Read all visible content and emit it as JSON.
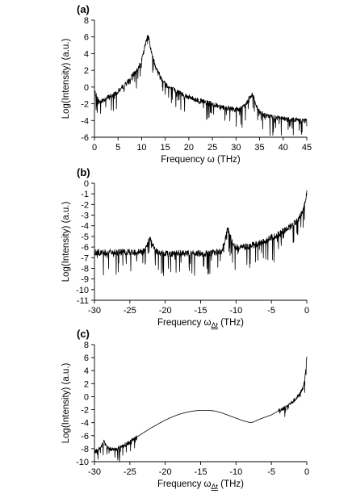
{
  "chart_data": [
    {
      "type": "line",
      "panel_label": "(a)",
      "title": "",
      "xlabel": "Frequency ω (THz)",
      "xlabel_sub": "",
      "xlabel_unit": "",
      "ylabel": "Log(Intensity) (a.u.)",
      "xlim": [
        0,
        45
      ],
      "ylim": [
        -6,
        8
      ],
      "xticks": [
        0,
        5,
        10,
        15,
        20,
        25,
        30,
        35,
        40,
        45
      ],
      "yticks": [
        -6,
        -4,
        -2,
        0,
        2,
        4,
        6,
        8
      ],
      "grid": false,
      "series": [
        {
          "noisy": true,
          "x": [
            0,
            1,
            2,
            3,
            4,
            5,
            6,
            7,
            8,
            9,
            10,
            10.5,
            11,
            11.3,
            11.6,
            12,
            13,
            14,
            15,
            16,
            18,
            20,
            22,
            24,
            26,
            28,
            30,
            31,
            32,
            32.8,
            33.3,
            33.8,
            34.3,
            35,
            36,
            38,
            40,
            42,
            44,
            45
          ],
          "y": [
            -0.5,
            -1.8,
            -1.5,
            -1.2,
            -0.9,
            -0.5,
            0,
            0.6,
            1.3,
            2.0,
            3.2,
            4.3,
            5.6,
            6.3,
            5.6,
            4.3,
            2.4,
            1.2,
            0.4,
            -0.1,
            -0.7,
            -1.2,
            -1.6,
            -1.9,
            -2.2,
            -2.5,
            -2.7,
            -2.6,
            -2.2,
            -1.3,
            -0.9,
            -1.3,
            -2.4,
            -3.0,
            -3.4,
            -3.6,
            -3.8,
            -3.9,
            -4.0,
            -4.0
          ]
        }
      ]
    },
    {
      "type": "line",
      "panel_label": "(b)",
      "title": "",
      "xlabel": "Frequency ω",
      "xlabel_sub": "Δt",
      "xlabel_unit": "(THz)",
      "ylabel": "Log(Intensity) (a.u.)",
      "xlim": [
        -30,
        0
      ],
      "ylim": [
        -11,
        0
      ],
      "xticks": [
        -30,
        -25,
        -20,
        -15,
        -10,
        -5,
        0
      ],
      "yticks": [
        -11,
        -10,
        -9,
        -8,
        -7,
        -6,
        -5,
        -4,
        -3,
        -2,
        -1,
        0
      ],
      "grid": false,
      "series": [
        {
          "noisy": true,
          "x": [
            -30,
            -28,
            -26,
            -24,
            -23,
            -22.5,
            -22.2,
            -22,
            -21.5,
            -21,
            -20,
            -18,
            -16,
            -14,
            -12,
            -11.5,
            -11.2,
            -11,
            -10.6,
            -10,
            -9,
            -8,
            -7,
            -6,
            -5,
            -4,
            -3,
            -2,
            -1.5,
            -1,
            -0.5,
            -0.2,
            0
          ],
          "y": [
            -6.5,
            -6.5,
            -6.5,
            -6.5,
            -6.4,
            -5.8,
            -5.2,
            -5.4,
            -6.2,
            -6.5,
            -6.6,
            -6.6,
            -6.6,
            -6.6,
            -6.4,
            -5.3,
            -4.3,
            -4.6,
            -5.5,
            -6.0,
            -6.0,
            -5.9,
            -5.7,
            -5.5,
            -5.1,
            -4.8,
            -4.4,
            -3.9,
            -3.6,
            -3.2,
            -2.5,
            -1.7,
            -0.8
          ]
        }
      ]
    },
    {
      "type": "line",
      "panel_label": "(c)",
      "title": "",
      "xlabel": "Frequency ω",
      "xlabel_sub": "Δt",
      "xlabel_unit": "(THz)",
      "ylabel": "Log(Intensity) (a.u.)",
      "xlim": [
        -30,
        0
      ],
      "ylim": [
        -10,
        8
      ],
      "xticks": [
        -30,
        -25,
        -20,
        -15,
        -10,
        -5,
        0
      ],
      "yticks": [
        -10,
        -8,
        -6,
        -4,
        -2,
        0,
        2,
        4,
        6,
        8
      ],
      "grid": false,
      "series": [
        {
          "noisy_below_x": -24,
          "noisy_above_x": -4,
          "x": [
            -30,
            -29.5,
            -29,
            -28.7,
            -28.3,
            -28,
            -27,
            -26,
            -25,
            -24,
            -23,
            -22,
            -21,
            -20,
            -19,
            -18,
            -17,
            -16,
            -15,
            -14,
            -13,
            -12,
            -11,
            -10,
            -9,
            -8,
            -7.5,
            -7,
            -6,
            -5,
            -4,
            -3,
            -2,
            -1,
            -0.5,
            -0.2,
            0
          ],
          "y": [
            -8.5,
            -8.2,
            -7.6,
            -6.9,
            -7.6,
            -8.0,
            -8.1,
            -7.6,
            -7.0,
            -6.2,
            -5.5,
            -4.8,
            -4.2,
            -3.6,
            -3.1,
            -2.7,
            -2.4,
            -2.2,
            -2.1,
            -2.1,
            -2.2,
            -2.5,
            -2.9,
            -3.3,
            -3.7,
            -4.0,
            -3.9,
            -3.6,
            -3.2,
            -2.8,
            -2.2,
            -1.6,
            -0.8,
            0.3,
            1.5,
            3.5,
            6.3
          ]
        }
      ]
    }
  ]
}
